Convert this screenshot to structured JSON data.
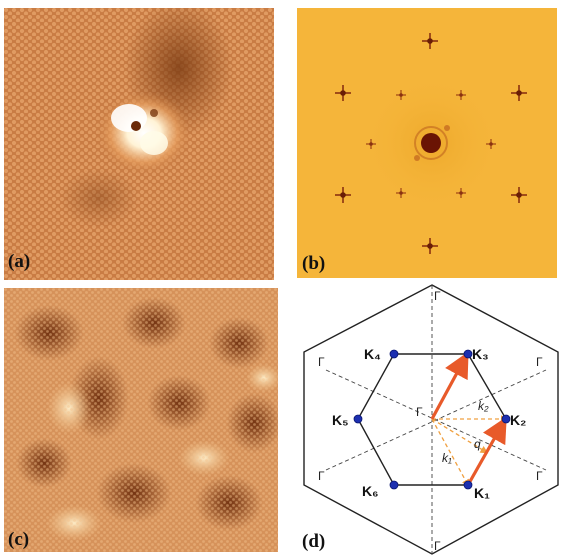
{
  "figure": {
    "panels": [
      {
        "id": "a",
        "label": "(a)",
        "kind": "STM topograph with defect"
      },
      {
        "id": "b",
        "label": "(b)",
        "kind": "Fourier transform"
      },
      {
        "id": "c",
        "label": "(c)",
        "kind": "STM topograph"
      },
      {
        "id": "d",
        "label": "(d)",
        "kind": "Brillouin zone diagram"
      }
    ],
    "diagram": {
      "corner_labels": [
        "K₁",
        "K₂",
        "K₃",
        "K₄",
        "K₅",
        "K₆"
      ],
      "gamma_labels": [
        "Γ",
        "Γ",
        "Γ",
        "Γ",
        "Γ",
        "Γ",
        "Γ"
      ],
      "vector_labels": {
        "k1": "k₁",
        "k2": "k₂",
        "q": "q"
      },
      "colors": {
        "corner_dot": "#1c2fb0",
        "arrow": "#e85a2a",
        "dashed": "#f0a040",
        "lines": "#222222"
      }
    }
  }
}
